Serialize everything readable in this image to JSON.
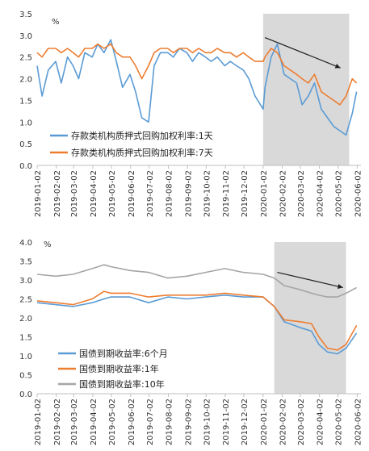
{
  "chart_data": [
    {
      "type": "line",
      "unit_label": "%",
      "ylim": [
        0,
        3.5
      ],
      "y_ticks": [
        "0.0",
        "0.5",
        "1.0",
        "1.5",
        "2.0",
        "2.5",
        "3.0",
        "3.5"
      ],
      "x_ticks": [
        "2019-01-02",
        "2019-02-02",
        "2019-03-02",
        "2019-04-02",
        "2019-05-02",
        "2019-06-02",
        "2019-07-02",
        "2019-08-02",
        "2019-09-02",
        "2019-10-02",
        "2019-11-02",
        "2019-12-02",
        "2020-01-02",
        "2020-02-02",
        "2020-03-02",
        "2020-04-02",
        "2020-05-02",
        "2020-06-02"
      ],
      "shaded_range": [
        "2020-01-02",
        "2020-05-20"
      ],
      "arrow": {
        "from": [
          "2020-01-05",
          2.95
        ],
        "to": [
          "2020-05-06",
          2.25
        ]
      },
      "grid": false,
      "legend_position": "bottom-left",
      "series": [
        {
          "name": "存款类机构质押式回购加权利率:1天",
          "color": "#5b9bd5",
          "values": [
            [
              "2019-01-02",
              2.3
            ],
            [
              "2019-01-10",
              1.6
            ],
            [
              "2019-01-20",
              2.2
            ],
            [
              "2019-02-01",
              2.4
            ],
            [
              "2019-02-10",
              1.9
            ],
            [
              "2019-02-20",
              2.5
            ],
            [
              "2019-03-01",
              2.3
            ],
            [
              "2019-03-10",
              2.0
            ],
            [
              "2019-03-20",
              2.6
            ],
            [
              "2019-04-01",
              2.5
            ],
            [
              "2019-04-10",
              2.8
            ],
            [
              "2019-04-20",
              2.6
            ],
            [
              "2019-05-01",
              2.9
            ],
            [
              "2019-05-10",
              2.4
            ],
            [
              "2019-05-20",
              1.8
            ],
            [
              "2019-06-01",
              2.1
            ],
            [
              "2019-06-10",
              1.7
            ],
            [
              "2019-06-20",
              1.1
            ],
            [
              "2019-07-01",
              1.0
            ],
            [
              "2019-07-10",
              2.3
            ],
            [
              "2019-07-20",
              2.6
            ],
            [
              "2019-08-01",
              2.6
            ],
            [
              "2019-08-10",
              2.5
            ],
            [
              "2019-08-20",
              2.7
            ],
            [
              "2019-09-01",
              2.6
            ],
            [
              "2019-09-10",
              2.4
            ],
            [
              "2019-09-20",
              2.6
            ],
            [
              "2019-10-01",
              2.5
            ],
            [
              "2019-10-10",
              2.4
            ],
            [
              "2019-10-20",
              2.5
            ],
            [
              "2019-11-01",
              2.3
            ],
            [
              "2019-11-10",
              2.4
            ],
            [
              "2019-11-20",
              2.3
            ],
            [
              "2019-12-01",
              2.2
            ],
            [
              "2019-12-10",
              2.0
            ],
            [
              "2019-12-20",
              1.6
            ],
            [
              "2020-01-02",
              1.3
            ],
            [
              "2020-01-05",
              1.8
            ],
            [
              "2020-01-15",
              2.5
            ],
            [
              "2020-01-25",
              2.8
            ],
            [
              "2020-02-05",
              2.1
            ],
            [
              "2020-02-15",
              2.0
            ],
            [
              "2020-02-25",
              1.9
            ],
            [
              "2020-03-05",
              1.4
            ],
            [
              "2020-03-15",
              1.6
            ],
            [
              "2020-03-25",
              1.9
            ],
            [
              "2020-04-05",
              1.3
            ],
            [
              "2020-04-15",
              1.1
            ],
            [
              "2020-04-25",
              0.9
            ],
            [
              "2020-05-05",
              0.8
            ],
            [
              "2020-05-15",
              0.7
            ],
            [
              "2020-05-25",
              1.2
            ],
            [
              "2020-06-01",
              1.7
            ]
          ]
        },
        {
          "name": "存款类机构质押式回购加权利率:7天",
          "color": "#ed7d31",
          "values": [
            [
              "2019-01-02",
              2.6
            ],
            [
              "2019-01-10",
              2.5
            ],
            [
              "2019-01-20",
              2.7
            ],
            [
              "2019-02-01",
              2.7
            ],
            [
              "2019-02-10",
              2.6
            ],
            [
              "2019-02-20",
              2.7
            ],
            [
              "2019-03-01",
              2.6
            ],
            [
              "2019-03-10",
              2.5
            ],
            [
              "2019-03-20",
              2.7
            ],
            [
              "2019-04-01",
              2.7
            ],
            [
              "2019-04-10",
              2.8
            ],
            [
              "2019-04-20",
              2.7
            ],
            [
              "2019-05-01",
              2.8
            ],
            [
              "2019-05-10",
              2.6
            ],
            [
              "2019-05-20",
              2.5
            ],
            [
              "2019-06-01",
              2.5
            ],
            [
              "2019-06-10",
              2.3
            ],
            [
              "2019-06-20",
              2.0
            ],
            [
              "2019-07-01",
              2.3
            ],
            [
              "2019-07-10",
              2.6
            ],
            [
              "2019-07-20",
              2.7
            ],
            [
              "2019-08-01",
              2.7
            ],
            [
              "2019-08-10",
              2.6
            ],
            [
              "2019-08-20",
              2.7
            ],
            [
              "2019-09-01",
              2.7
            ],
            [
              "2019-09-10",
              2.6
            ],
            [
              "2019-09-20",
              2.7
            ],
            [
              "2019-10-01",
              2.6
            ],
            [
              "2019-10-10",
              2.6
            ],
            [
              "2019-10-20",
              2.7
            ],
            [
              "2019-11-01",
              2.6
            ],
            [
              "2019-11-10",
              2.6
            ],
            [
              "2019-11-20",
              2.5
            ],
            [
              "2019-12-01",
              2.6
            ],
            [
              "2019-12-10",
              2.5
            ],
            [
              "2019-12-20",
              2.4
            ],
            [
              "2020-01-02",
              2.4
            ],
            [
              "2020-01-05",
              2.5
            ],
            [
              "2020-01-15",
              2.7
            ],
            [
              "2020-01-25",
              2.6
            ],
            [
              "2020-02-05",
              2.3
            ],
            [
              "2020-02-15",
              2.2
            ],
            [
              "2020-02-25",
              2.1
            ],
            [
              "2020-03-05",
              2.0
            ],
            [
              "2020-03-15",
              1.9
            ],
            [
              "2020-03-25",
              2.1
            ],
            [
              "2020-04-05",
              1.7
            ],
            [
              "2020-04-15",
              1.6
            ],
            [
              "2020-04-25",
              1.5
            ],
            [
              "2020-05-05",
              1.4
            ],
            [
              "2020-05-15",
              1.6
            ],
            [
              "2020-05-25",
              2.0
            ],
            [
              "2020-06-01",
              1.9
            ]
          ]
        }
      ]
    },
    {
      "type": "line",
      "unit_label": "%",
      "ylim": [
        0,
        4.0
      ],
      "y_ticks": [
        "0.0",
        "0.5",
        "1.0",
        "1.5",
        "2.0",
        "2.5",
        "3.0",
        "3.5",
        "4.0"
      ],
      "x_ticks": [
        "2019-01-02",
        "2019-02-02",
        "2019-03-02",
        "2019-04-02",
        "2019-05-02",
        "2019-06-02",
        "2019-07-02",
        "2019-08-02",
        "2019-09-02",
        "2019-10-02",
        "2019-11-02",
        "2019-12-02",
        "2020-01-02",
        "2020-02-02",
        "2020-03-02",
        "2020-04-02",
        "2020-05-02",
        "2020-06-02"
      ],
      "shaded_range": [
        "2020-01-20",
        "2020-05-15"
      ],
      "arrow": {
        "from": [
          "2020-01-25",
          3.2
        ],
        "to": [
          "2020-05-10",
          2.8
        ]
      },
      "grid": false,
      "legend_position": "bottom-left",
      "series": [
        {
          "name": "国债到期收益率:6个月",
          "color": "#5b9bd5",
          "values": [
            [
              "2019-01-02",
              2.4
            ],
            [
              "2019-02-01",
              2.35
            ],
            [
              "2019-03-01",
              2.3
            ],
            [
              "2019-04-01",
              2.4
            ],
            [
              "2019-04-20",
              2.5
            ],
            [
              "2019-05-01",
              2.55
            ],
            [
              "2019-06-01",
              2.55
            ],
            [
              "2019-07-01",
              2.4
            ],
            [
              "2019-08-01",
              2.55
            ],
            [
              "2019-09-01",
              2.5
            ],
            [
              "2019-10-01",
              2.55
            ],
            [
              "2019-11-01",
              2.6
            ],
            [
              "2019-12-01",
              2.55
            ],
            [
              "2020-01-02",
              2.55
            ],
            [
              "2020-01-20",
              2.3
            ],
            [
              "2020-02-05",
              1.9
            ],
            [
              "2020-03-01",
              1.75
            ],
            [
              "2020-03-20",
              1.65
            ],
            [
              "2020-04-01",
              1.3
            ],
            [
              "2020-04-15",
              1.1
            ],
            [
              "2020-05-01",
              1.05
            ],
            [
              "2020-05-15",
              1.2
            ],
            [
              "2020-06-01",
              1.6
            ]
          ]
        },
        {
          "name": "国债到期收益率:1年",
          "color": "#ed7d31",
          "values": [
            [
              "2019-01-02",
              2.45
            ],
            [
              "2019-02-01",
              2.4
            ],
            [
              "2019-03-01",
              2.35
            ],
            [
              "2019-04-01",
              2.5
            ],
            [
              "2019-04-20",
              2.7
            ],
            [
              "2019-05-01",
              2.65
            ],
            [
              "2019-06-01",
              2.65
            ],
            [
              "2019-07-01",
              2.55
            ],
            [
              "2019-08-01",
              2.6
            ],
            [
              "2019-09-01",
              2.6
            ],
            [
              "2019-10-01",
              2.6
            ],
            [
              "2019-11-01",
              2.65
            ],
            [
              "2019-12-01",
              2.6
            ],
            [
              "2020-01-02",
              2.55
            ],
            [
              "2020-01-20",
              2.3
            ],
            [
              "2020-02-05",
              1.95
            ],
            [
              "2020-03-01",
              1.9
            ],
            [
              "2020-03-20",
              1.85
            ],
            [
              "2020-04-01",
              1.5
            ],
            [
              "2020-04-15",
              1.2
            ],
            [
              "2020-05-01",
              1.15
            ],
            [
              "2020-05-15",
              1.3
            ],
            [
              "2020-06-01",
              1.8
            ]
          ]
        },
        {
          "name": "国债到期收益率:10年",
          "color": "#a5a5a5",
          "values": [
            [
              "2019-01-02",
              3.15
            ],
            [
              "2019-02-01",
              3.1
            ],
            [
              "2019-03-01",
              3.15
            ],
            [
              "2019-04-01",
              3.3
            ],
            [
              "2019-04-20",
              3.4
            ],
            [
              "2019-05-01",
              3.35
            ],
            [
              "2019-06-01",
              3.25
            ],
            [
              "2019-07-01",
              3.2
            ],
            [
              "2019-08-01",
              3.05
            ],
            [
              "2019-09-01",
              3.1
            ],
            [
              "2019-10-01",
              3.2
            ],
            [
              "2019-11-01",
              3.3
            ],
            [
              "2019-12-01",
              3.2
            ],
            [
              "2020-01-02",
              3.15
            ],
            [
              "2020-01-20",
              3.05
            ],
            [
              "2020-02-05",
              2.85
            ],
            [
              "2020-03-01",
              2.75
            ],
            [
              "2020-03-20",
              2.65
            ],
            [
              "2020-04-01",
              2.6
            ],
            [
              "2020-04-15",
              2.55
            ],
            [
              "2020-05-01",
              2.55
            ],
            [
              "2020-05-15",
              2.65
            ],
            [
              "2020-06-01",
              2.8
            ]
          ]
        }
      ]
    }
  ]
}
